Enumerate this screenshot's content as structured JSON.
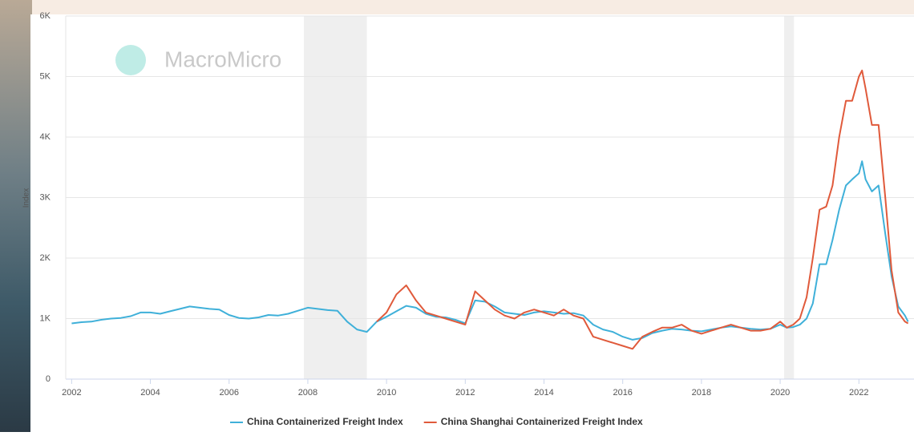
{
  "chart_data": {
    "type": "line",
    "watermark": "MacroMicro",
    "y_label": "Index",
    "x": [
      2002,
      2002.25,
      2002.5,
      2002.75,
      2003,
      2003.25,
      2003.5,
      2003.75,
      2004,
      2004.25,
      2004.5,
      2004.75,
      2005,
      2005.25,
      2005.5,
      2005.75,
      2006,
      2006.25,
      2006.5,
      2006.75,
      2007,
      2007.25,
      2007.5,
      2007.75,
      2008,
      2008.25,
      2008.5,
      2008.75,
      2009,
      2009.25,
      2009.5,
      2009.75,
      2010,
      2010.25,
      2010.5,
      2010.75,
      2011,
      2011.25,
      2011.5,
      2011.75,
      2012,
      2012.25,
      2012.5,
      2012.75,
      2013,
      2013.25,
      2013.5,
      2013.75,
      2014,
      2014.25,
      2014.5,
      2014.75,
      2015,
      2015.25,
      2015.5,
      2015.75,
      2016,
      2016.25,
      2016.5,
      2016.75,
      2017,
      2017.25,
      2017.5,
      2017.75,
      2018,
      2018.25,
      2018.5,
      2018.75,
      2019,
      2019.25,
      2019.5,
      2019.75,
      2020,
      2020.17,
      2020.33,
      2020.5,
      2020.67,
      2020.83,
      2021,
      2021.17,
      2021.33,
      2021.5,
      2021.67,
      2021.83,
      2022,
      2022.08,
      2022.17,
      2022.33,
      2022.5,
      2022.67,
      2022.83,
      2023,
      2023.17,
      2023.25
    ],
    "series": [
      {
        "name": "China Containerized Freight Index",
        "color": "#3fb0d9",
        "values": [
          920,
          940,
          950,
          980,
          1000,
          1010,
          1040,
          1100,
          1100,
          1080,
          1120,
          1160,
          1200,
          1180,
          1160,
          1150,
          1060,
          1010,
          1000,
          1020,
          1060,
          1050,
          1080,
          1130,
          1180,
          1160,
          1140,
          1130,
          950,
          820,
          780,
          950,
          1030,
          1120,
          1210,
          1180,
          1080,
          1030,
          1020,
          980,
          920,
          1300,
          1280,
          1200,
          1100,
          1080,
          1060,
          1100,
          1120,
          1100,
          1080,
          1090,
          1050,
          900,
          820,
          780,
          700,
          650,
          680,
          760,
          800,
          830,
          820,
          800,
          790,
          820,
          850,
          870,
          850,
          830,
          820,
          830,
          900,
          850,
          860,
          900,
          1000,
          1250,
          1900,
          1900,
          2300,
          2800,
          3200,
          3300,
          3400,
          3600,
          3300,
          3100,
          3200,
          2400,
          1700,
          1200,
          1050,
          950
        ]
      },
      {
        "name": "China Shanghai Containerized Freight Index",
        "color": "#e05a3b",
        "values": [
          null,
          null,
          null,
          null,
          null,
          null,
          null,
          null,
          null,
          null,
          null,
          null,
          null,
          null,
          null,
          null,
          null,
          null,
          null,
          null,
          null,
          null,
          null,
          null,
          null,
          null,
          null,
          null,
          null,
          null,
          null,
          950,
          1100,
          1400,
          1550,
          1300,
          1100,
          1050,
          1000,
          950,
          900,
          1450,
          1300,
          1150,
          1050,
          1000,
          1100,
          1150,
          1100,
          1050,
          1150,
          1050,
          1000,
          700,
          650,
          600,
          550,
          500,
          700,
          780,
          850,
          850,
          900,
          800,
          750,
          800,
          850,
          900,
          850,
          800,
          800,
          830,
          950,
          850,
          900,
          1000,
          1350,
          2000,
          2800,
          2850,
          3200,
          4000,
          4600,
          4600,
          5000,
          5100,
          4800,
          4200,
          4200,
          3000,
          1800,
          1100,
          950,
          920
        ]
      }
    ],
    "shaded_ranges": [
      [
        2007.9,
        2009.5
      ],
      [
        2020.1,
        2020.35
      ]
    ],
    "xlim": [
      2001.85,
      2023.4
    ],
    "xticks": [
      2002,
      2004,
      2006,
      2008,
      2010,
      2012,
      2014,
      2016,
      2018,
      2020,
      2022
    ],
    "ylim": [
      0,
      6000
    ],
    "yticks": [
      0,
      {
        "value": 1000,
        "label": "1K"
      },
      {
        "value": 2000,
        "label": "2K"
      },
      {
        "value": 3000,
        "label": "3K"
      },
      {
        "value": 4000,
        "label": "4K"
      },
      {
        "value": 5000,
        "label": "5K"
      },
      {
        "value": 6000,
        "label": "6K"
      }
    ],
    "grid": true,
    "legend": "bottom"
  }
}
